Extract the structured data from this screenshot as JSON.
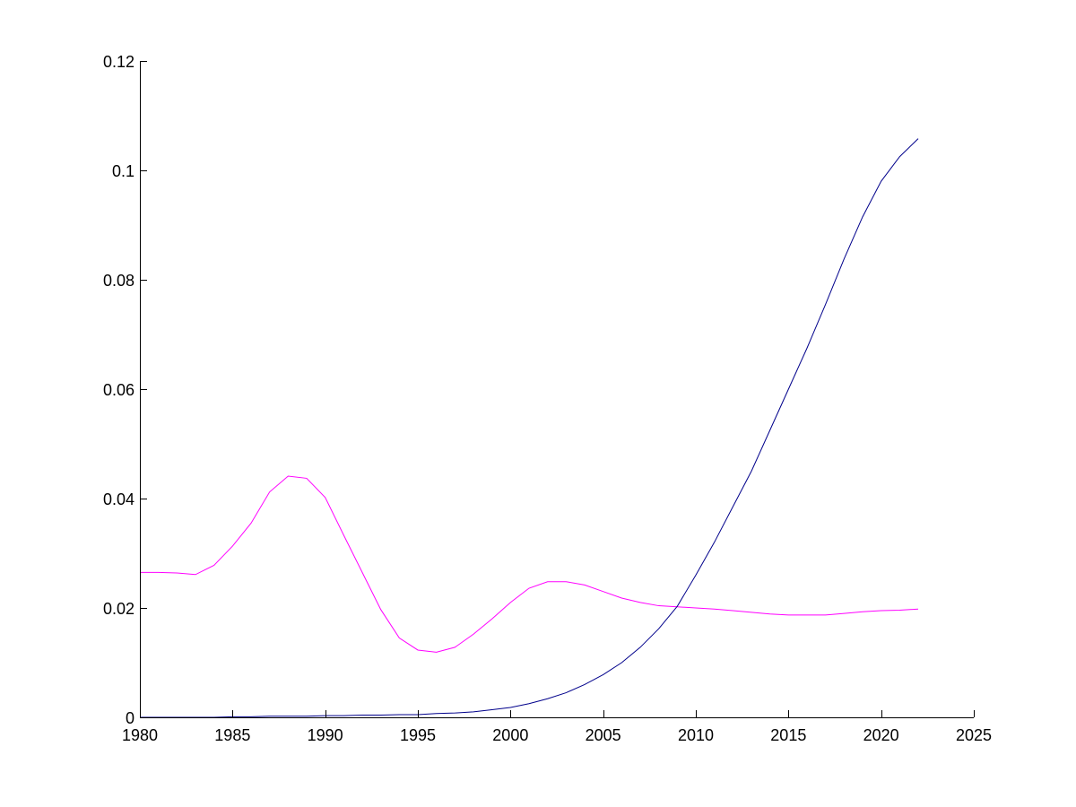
{
  "chart_data": {
    "type": "line",
    "title": "",
    "xlabel": "",
    "ylabel": "",
    "xlim": [
      1980,
      2025
    ],
    "ylim": [
      0,
      0.12
    ],
    "grid": false,
    "legend": "none",
    "x_ticks": [
      1980,
      1985,
      1990,
      1995,
      2000,
      2005,
      2010,
      2015,
      2020,
      2025
    ],
    "x_tick_labels": [
      "1980",
      "1985",
      "1990",
      "1995",
      "2000",
      "2005",
      "2010",
      "2015",
      "2020",
      "2025"
    ],
    "y_ticks": [
      0,
      0.02,
      0.04,
      0.06,
      0.08,
      0.1,
      0.12
    ],
    "y_tick_labels": [
      "0",
      "0.02",
      "0.04",
      "0.06",
      "0.08",
      "0.1",
      "0.12"
    ],
    "x": [
      1980,
      1981,
      1982,
      1983,
      1984,
      1985,
      1986,
      1987,
      1988,
      1989,
      1990,
      1991,
      1992,
      1993,
      1994,
      1995,
      1996,
      1997,
      1998,
      1999,
      2000,
      2001,
      2002,
      2003,
      2004,
      2005,
      2006,
      2007,
      2008,
      2009,
      2010,
      2011,
      2012,
      2013,
      2014,
      2015,
      2016,
      2017,
      2018,
      2019,
      2020,
      2021,
      2022
    ],
    "series": [
      {
        "color": "#ff00ff",
        "values": [
          0.0265,
          0.0265,
          0.0264,
          0.0261,
          0.0278,
          0.0313,
          0.0355,
          0.0412,
          0.0441,
          0.0437,
          0.0402,
          0.0333,
          0.0265,
          0.0197,
          0.0145,
          0.0123,
          0.0119,
          0.0128,
          0.0152,
          0.018,
          0.021,
          0.0236,
          0.0248,
          0.0248,
          0.0242,
          0.023,
          0.0218,
          0.021,
          0.0204,
          0.0202,
          0.02,
          0.0198,
          0.0195,
          0.0192,
          0.0189,
          0.0187,
          0.0187,
          0.0187,
          0.019,
          0.0193,
          0.0195,
          0.0196,
          0.0198
        ]
      },
      {
        "color": "#00008b",
        "values": [
          0.0,
          0.0,
          0.0,
          0.0,
          0.0,
          0.0001,
          0.0001,
          0.0002,
          0.0002,
          0.0002,
          0.0003,
          0.0003,
          0.0004,
          0.0004,
          0.0005,
          0.0005,
          0.0007,
          0.0008,
          0.001,
          0.0014,
          0.0018,
          0.0025,
          0.0034,
          0.0045,
          0.006,
          0.0078,
          0.01,
          0.0128,
          0.0162,
          0.0203,
          0.026,
          0.032,
          0.0385,
          0.045,
          0.0525,
          0.06,
          0.0675,
          0.0755,
          0.0838,
          0.0915,
          0.098,
          0.1025,
          0.1058
        ]
      }
    ]
  }
}
